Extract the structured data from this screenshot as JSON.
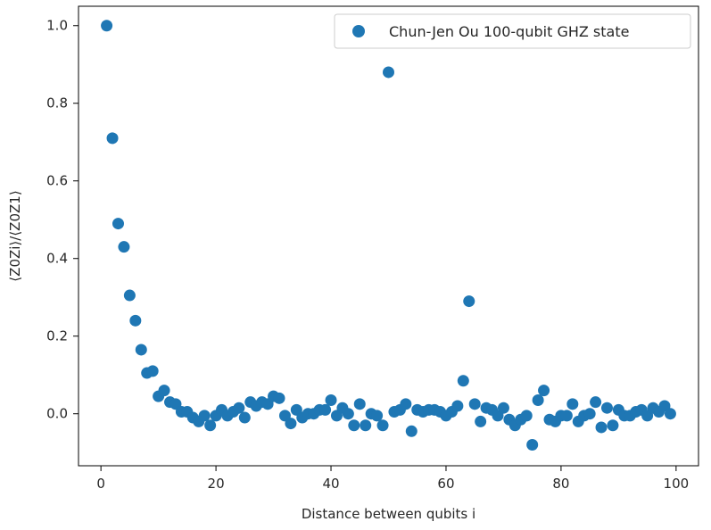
{
  "chart_data": {
    "type": "scatter",
    "title": "",
    "xlabel": "Distance between qubits i",
    "ylabel": "⟨Z0Zi⟩/⟨Z0Z1⟩",
    "xlim": [
      -3.9,
      103.9
    ],
    "ylim": [
      -0.134,
      1.05
    ],
    "x_ticks": [
      0,
      20,
      40,
      60,
      80,
      100
    ],
    "x_tick_labels": [
      "0",
      "20",
      "40",
      "60",
      "80",
      "100"
    ],
    "y_ticks": [
      0.0,
      0.2,
      0.4,
      0.6,
      0.8,
      1.0
    ],
    "y_tick_labels": [
      "0.0",
      "0.2",
      "0.4",
      "0.6",
      "0.8",
      "1.0"
    ],
    "grid": false,
    "legend_position": "top-right",
    "series": [
      {
        "name": "Chun-Jen Ou 100-qubit GHZ state",
        "color": "#1f77b4",
        "x": [
          1,
          2,
          3,
          4,
          5,
          6,
          7,
          8,
          9,
          10,
          11,
          12,
          13,
          14,
          15,
          16,
          17,
          18,
          19,
          20,
          21,
          22,
          23,
          24,
          25,
          26,
          27,
          28,
          29,
          30,
          31,
          32,
          33,
          34,
          35,
          36,
          37,
          38,
          39,
          40,
          41,
          42,
          43,
          44,
          45,
          46,
          47,
          48,
          49,
          50,
          51,
          52,
          53,
          54,
          55,
          56,
          57,
          58,
          59,
          60,
          61,
          62,
          63,
          64,
          65,
          66,
          67,
          68,
          69,
          70,
          71,
          72,
          73,
          74,
          75,
          76,
          77,
          78,
          79,
          80,
          81,
          82,
          83,
          84,
          85,
          86,
          87,
          88,
          89,
          90,
          91,
          92,
          93,
          94,
          95,
          96,
          97,
          98,
          99
        ],
        "y": [
          1.0,
          0.71,
          0.49,
          0.43,
          0.305,
          0.24,
          0.165,
          0.105,
          0.11,
          0.045,
          0.06,
          0.03,
          0.025,
          0.005,
          0.005,
          -0.01,
          -0.02,
          -0.005,
          -0.03,
          -0.005,
          0.01,
          -0.005,
          0.005,
          0.015,
          -0.01,
          0.03,
          0.02,
          0.03,
          0.025,
          0.045,
          0.04,
          -0.005,
          -0.025,
          0.01,
          -0.01,
          0.0,
          0.0,
          0.01,
          0.01,
          0.035,
          -0.005,
          0.015,
          0.0,
          -0.03,
          0.025,
          -0.03,
          0.0,
          -0.005,
          -0.03,
          0.88,
          0.005,
          0.01,
          0.025,
          -0.045,
          0.01,
          0.005,
          0.01,
          0.01,
          0.005,
          -0.005,
          0.005,
          0.02,
          0.085,
          0.29,
          0.025,
          -0.02,
          0.015,
          0.01,
          -0.005,
          0.015,
          -0.015,
          -0.03,
          -0.015,
          -0.005,
          -0.08,
          0.035,
          0.06,
          -0.015,
          -0.02,
          -0.005,
          -0.005,
          0.025,
          -0.02,
          -0.005,
          0.0,
          0.03,
          -0.035,
          0.015,
          -0.03,
          0.01,
          -0.005,
          -0.005,
          0.005,
          0.01,
          -0.005,
          0.015,
          0.005,
          0.02,
          0.0
        ]
      }
    ]
  }
}
